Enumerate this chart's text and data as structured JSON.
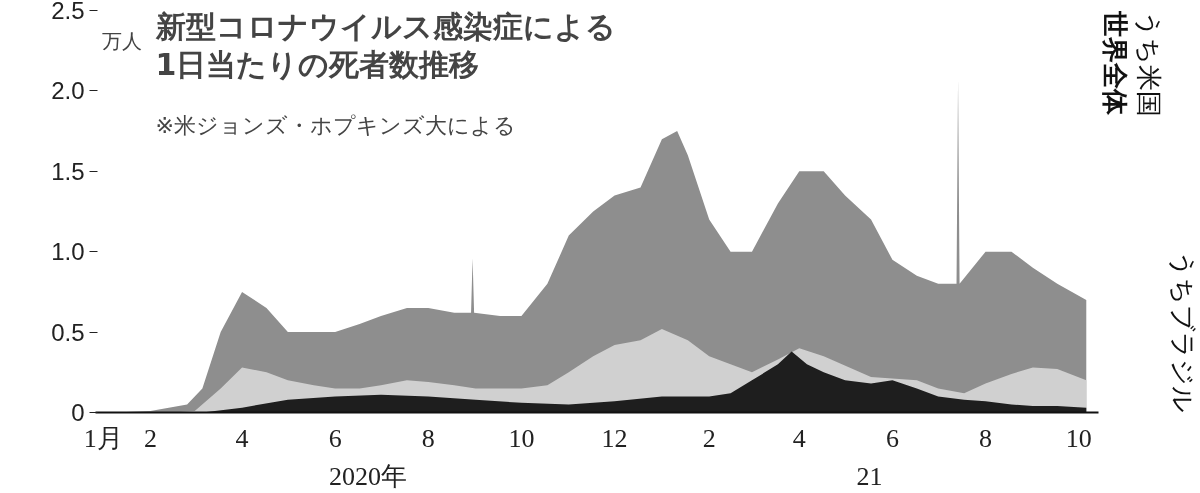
{
  "chart_data": {
    "type": "area",
    "title": "新型コロナウイルス感染症による\n1日当たりの死者数推移",
    "subtitle": "※米ジョンズ・ホプキンズ大による",
    "ylabel": "万人",
    "annotations": [
      "2020年",
      "21"
    ],
    "xlim": [
      "2020-01-10",
      "2021-10-28"
    ],
    "xticks": [
      {
        "value": "2020-01-15",
        "label": "1月"
      },
      {
        "value": "2020-02-15",
        "label": "2"
      },
      {
        "value": "2020-04-15",
        "label": "4"
      },
      {
        "value": "2020-06-15",
        "label": "6"
      },
      {
        "value": "2020-08-15",
        "label": "8"
      },
      {
        "value": "2020-10-15",
        "label": "10"
      },
      {
        "value": "2020-12-15",
        "label": "12"
      },
      {
        "value": "2021-02-15",
        "label": "2"
      },
      {
        "value": "2021-04-15",
        "label": "4"
      },
      {
        "value": "2021-06-15",
        "label": "6"
      },
      {
        "value": "2021-08-15",
        "label": "8"
      },
      {
        "value": "2021-10-15",
        "label": "10"
      }
    ],
    "ylim": [
      0,
      2.5
    ],
    "yticks": [
      {
        "value": 0,
        "label": "0"
      },
      {
        "value": 0.5,
        "label": "0.5"
      },
      {
        "value": 1,
        "label": "1.0"
      },
      {
        "value": 1.5,
        "label": "1.5"
      },
      {
        "value": 2,
        "label": "2.0"
      },
      {
        "value": 2.5,
        "label": "2.5"
      }
    ],
    "grid": false,
    "legend": false,
    "series": [
      {
        "name": "世界全体",
        "color": "#8e8e8e",
        "x": [
          "2020-01-22",
          "2020-02-15",
          "2020-03-10",
          "2020-03-20",
          "2020-04-01",
          "2020-04-15",
          "2020-05-01",
          "2020-05-15",
          "2020-06-01",
          "2020-06-15",
          "2020-07-01",
          "2020-07-15",
          "2020-08-01",
          "2020-08-15",
          "2020-09-01",
          "2020-09-12",
          "2020-09-13",
          "2020-09-14",
          "2020-10-01",
          "2020-10-15",
          "2020-11-01",
          "2020-11-15",
          "2020-12-01",
          "2020-12-15",
          "2021-01-01",
          "2021-01-15",
          "2021-01-25",
          "2021-02-01",
          "2021-02-15",
          "2021-03-01",
          "2021-03-15",
          "2021-04-01",
          "2021-04-15",
          "2021-05-01",
          "2021-05-15",
          "2021-06-01",
          "2021-06-15",
          "2021-07-01",
          "2021-07-15",
          "2021-07-27",
          "2021-07-28",
          "2021-07-29",
          "2021-08-15",
          "2021-09-01",
          "2021-09-15",
          "2021-10-01",
          "2021-10-20"
        ],
        "values": [
          0,
          0.01,
          0.05,
          0.15,
          0.5,
          0.75,
          0.65,
          0.5,
          0.5,
          0.5,
          0.55,
          0.6,
          0.65,
          0.65,
          0.62,
          0.62,
          0.96,
          0.62,
          0.6,
          0.6,
          0.8,
          1.1,
          1.25,
          1.35,
          1.4,
          1.7,
          1.75,
          1.6,
          1.2,
          1.0,
          1.0,
          1.3,
          1.5,
          1.5,
          1.35,
          1.2,
          0.95,
          0.85,
          0.8,
          0.8,
          2.07,
          0.8,
          1.0,
          1.0,
          0.9,
          0.8,
          0.7
        ]
      },
      {
        "name": "うち米国",
        "color": "#d0d0d0",
        "x": [
          "2020-03-01",
          "2020-03-15",
          "2020-04-01",
          "2020-04-15",
          "2020-05-01",
          "2020-05-15",
          "2020-06-01",
          "2020-06-15",
          "2020-07-01",
          "2020-07-15",
          "2020-08-01",
          "2020-08-15",
          "2020-09-01",
          "2020-09-15",
          "2020-10-01",
          "2020-10-15",
          "2020-11-01",
          "2020-11-15",
          "2020-12-01",
          "2020-12-15",
          "2021-01-01",
          "2021-01-15",
          "2021-02-01",
          "2021-02-15",
          "2021-03-01",
          "2021-03-15",
          "2021-04-01",
          "2021-04-15",
          "2021-05-01",
          "2021-06-01",
          "2021-07-01",
          "2021-07-15",
          "2021-08-01",
          "2021-08-15",
          "2021-09-01",
          "2021-09-15",
          "2021-10-01",
          "2021-10-20"
        ],
        "values": [
          0,
          0.01,
          0.15,
          0.28,
          0.25,
          0.2,
          0.17,
          0.15,
          0.15,
          0.17,
          0.2,
          0.19,
          0.17,
          0.15,
          0.15,
          0.15,
          0.17,
          0.25,
          0.35,
          0.42,
          0.45,
          0.52,
          0.45,
          0.35,
          0.3,
          0.25,
          0.33,
          0.4,
          0.35,
          0.22,
          0.2,
          0.15,
          0.12,
          0.18,
          0.24,
          0.28,
          0.27,
          0.2
        ]
      },
      {
        "name": "うちブラジル",
        "color": "#1e1e1e",
        "x": [
          "2020-03-20",
          "2020-04-15",
          "2020-05-15",
          "2020-06-15",
          "2020-07-15",
          "2020-08-15",
          "2020-09-15",
          "2020-10-15",
          "2020-11-15",
          "2020-12-15",
          "2021-01-15",
          "2021-02-15",
          "2021-03-01",
          "2021-03-15",
          "2021-04-01",
          "2021-04-10",
          "2021-04-20",
          "2021-05-01",
          "2021-05-15",
          "2021-06-01",
          "2021-06-15",
          "2021-07-01",
          "2021-07-15",
          "2021-08-01",
          "2021-08-15",
          "2021-09-01",
          "2021-09-15",
          "2021-10-01",
          "2021-10-20"
        ],
        "values": [
          0,
          0.03,
          0.08,
          0.1,
          0.11,
          0.1,
          0.08,
          0.06,
          0.05,
          0.07,
          0.1,
          0.1,
          0.12,
          0.2,
          0.3,
          0.38,
          0.3,
          0.25,
          0.2,
          0.18,
          0.2,
          0.15,
          0.1,
          0.08,
          0.07,
          0.05,
          0.04,
          0.04,
          0.03
        ]
      }
    ]
  }
}
